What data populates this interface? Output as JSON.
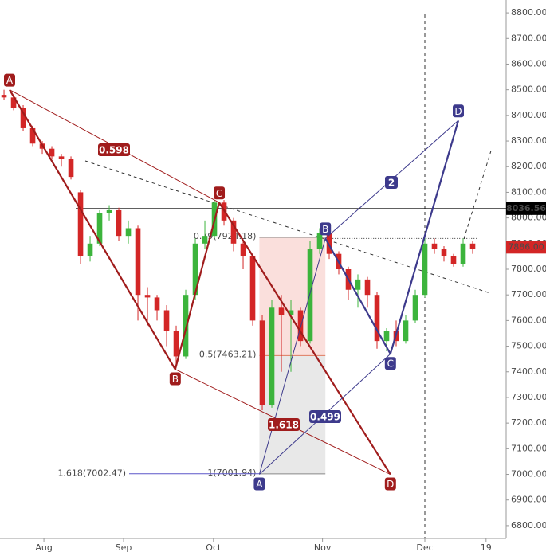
{
  "chart_data": {
    "type": "candlestick",
    "up_color": "#3cb43c",
    "down_color": "#d32626",
    "open": [
      8480,
      8470,
      8430,
      8350,
      8290,
      8270,
      8240,
      8230,
      8100,
      7850,
      7900,
      8020,
      8030,
      7930,
      7960,
      7700,
      7690,
      7640,
      7560,
      7460,
      7700,
      7900,
      7930,
      8060,
      7990,
      7900,
      7850,
      7600,
      7270,
      7650,
      7620,
      7640,
      7520,
      7880,
      7940,
      7860,
      7800,
      7720,
      7760,
      7700,
      7520,
      7560,
      7520,
      7600,
      7700,
      7900,
      7880,
      7850,
      7820,
      7900
    ],
    "high": [
      8500,
      8480,
      8440,
      8360,
      8300,
      8280,
      8250,
      8240,
      8110,
      7930,
      8030,
      8050,
      8040,
      7990,
      7970,
      7730,
      7700,
      7660,
      7580,
      7720,
      7920,
      7990,
      8070,
      8070,
      8000,
      7910,
      7860,
      7620,
      7680,
      7700,
      7680,
      7650,
      7910,
      7960,
      7950,
      7870,
      7810,
      7780,
      7770,
      7710,
      7570,
      7600,
      7620,
      7720,
      7920,
      7920,
      7890,
      7860,
      7920,
      7910
    ],
    "low": [
      8460,
      8420,
      8340,
      8280,
      8250,
      8230,
      8200,
      8150,
      7820,
      7830,
      7890,
      7990,
      7910,
      7900,
      7600,
      7580,
      7600,
      7500,
      7420,
      7450,
      7680,
      7880,
      7920,
      7970,
      7870,
      7800,
      7580,
      7250,
      7260,
      7400,
      7400,
      7500,
      7510,
      7860,
      7840,
      7780,
      7680,
      7650,
      7650,
      7490,
      7480,
      7500,
      7510,
      7590,
      7690,
      7860,
      7830,
      7810,
      7810,
      7860
    ],
    "close": [
      8470,
      8430,
      8350,
      8290,
      8270,
      8240,
      8230,
      8160,
      7850,
      7900,
      8020,
      8030,
      7930,
      7960,
      7700,
      7690,
      7640,
      7560,
      7460,
      7700,
      7900,
      7930,
      8060,
      7990,
      7900,
      7850,
      7600,
      7270,
      7650,
      7620,
      7640,
      7520,
      7880,
      7940,
      7860,
      7800,
      7720,
      7760,
      7700,
      7520,
      7560,
      7520,
      7600,
      7700,
      7900,
      7880,
      7850,
      7820,
      7900,
      7880
    ],
    "xlim": [
      -0.42,
      52.5
    ],
    "xticks": [
      {
        "value": 4.17,
        "label": "Aug"
      },
      {
        "value": 12.5,
        "label": "Sep"
      },
      {
        "value": 21.9,
        "label": "Oct"
      },
      {
        "value": 33.3,
        "label": "Nov"
      },
      {
        "value": 44,
        "label": "Dec"
      },
      {
        "value": 50.4,
        "label": "19"
      }
    ],
    "ylim": [
      6750,
      8850
    ],
    "yticks": [
      {
        "value": 6800,
        "label": "6800.00"
      },
      {
        "value": 6900,
        "label": "6900.00"
      },
      {
        "value": 7000,
        "label": "7000.00"
      },
      {
        "value": 7100,
        "label": "7100.00"
      },
      {
        "value": 7200,
        "label": "7200.00"
      },
      {
        "value": 7300,
        "label": "7300.00"
      },
      {
        "value": 7400,
        "label": "7400.00"
      },
      {
        "value": 7500,
        "label": "7500.00"
      },
      {
        "value": 7600,
        "label": "7600.00"
      },
      {
        "value": 7700,
        "label": "7700.00"
      },
      {
        "value": 7800,
        "label": "7800.00"
      },
      {
        "value": 7900,
        "label": "7900.00"
      },
      {
        "value": 8000,
        "label": "8000.00"
      },
      {
        "value": 8100,
        "label": "8100.00"
      },
      {
        "value": 8200,
        "label": "8200.00"
      },
      {
        "value": 8300,
        "label": "8300.00"
      },
      {
        "value": 8400,
        "label": "8400.00"
      },
      {
        "value": 8500,
        "label": "8500.00"
      },
      {
        "value": 8600,
        "label": "8600.00"
      },
      {
        "value": 8700,
        "label": "8700.00"
      },
      {
        "value": 8800,
        "label": "8800.00"
      }
    ],
    "horizontal_line": {
      "value": 8036.56,
      "label": "8036.56"
    },
    "last_price": {
      "value": 7886,
      "label": "7886.00"
    },
    "patterns": [
      {
        "color": "#a01c1c",
        "points": [
          {
            "label": "A",
            "x": 0.58,
            "y": 8500
          },
          {
            "label": "B",
            "x": 17.9,
            "y": 7410
          },
          {
            "label": "C",
            "x": 22.5,
            "y": 8060
          },
          {
            "label": "D",
            "x": 40.4,
            "y": 7000
          }
        ],
        "ratios": [
          "0.598",
          "1.618"
        ]
      },
      {
        "color": "#3d3a8c",
        "points": [
          {
            "label": "A",
            "x": 26.7,
            "y": 7000
          },
          {
            "label": "B",
            "x": 33.6,
            "y": 7920
          },
          {
            "label": "C",
            "x": 40.4,
            "y": 7470
          },
          {
            "label": "D",
            "x": 47.5,
            "y": 8380
          }
        ],
        "ratios": [
          "0.499",
          "2"
        ]
      }
    ],
    "fib_levels": [
      {
        "value": 7924.18,
        "label": "0.79(7924.18)"
      },
      {
        "value": 7463.21,
        "label": "0.5(7463.21)"
      },
      {
        "value": 7001.94,
        "label": "1(7001.94)"
      }
    ],
    "extension_level": {
      "value": 7002.47,
      "label": "1.618(7002.47)"
    }
  }
}
